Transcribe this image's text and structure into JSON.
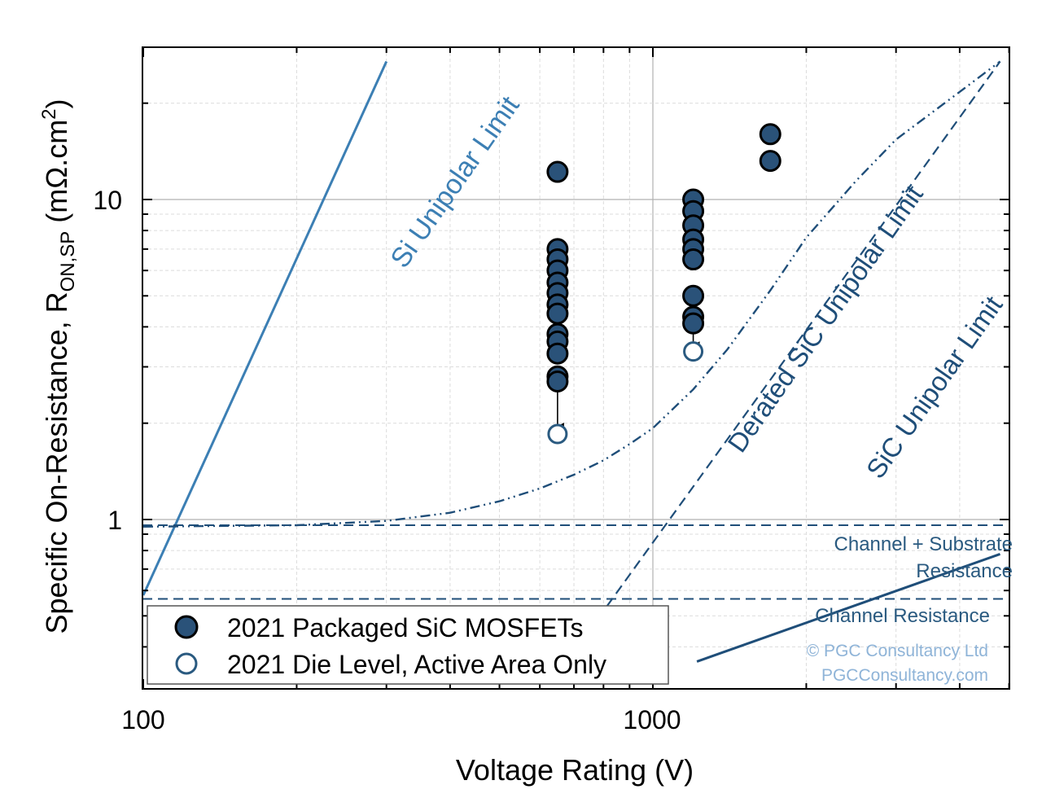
{
  "chart_data": {
    "type": "scatter",
    "xlabel": "Voltage Rating (V)",
    "ylabel_main": "Specific On-Resistance,  R",
    "ylabel_sub": "ON,SP",
    "ylabel_unit": " (mΩ.cm",
    "ylabel_sup": "2",
    "ylabel_close": ")",
    "x_scale": "log",
    "y_scale": "log",
    "xlim": [
      100,
      5000
    ],
    "ylim": [
      0.36,
      27
    ],
    "x_tick_labels": [
      {
        "value": 100,
        "label": "100"
      },
      {
        "value": 1000,
        "label": "1000"
      }
    ],
    "y_tick_labels": [
      {
        "value": 1,
        "label": "1"
      },
      {
        "value": 10,
        "label": "10"
      }
    ],
    "grid": true,
    "legend_position": "bottom-left",
    "series": [
      {
        "name": "2021 Packaged SiC MOSFETs",
        "marker": "filled-circle",
        "points": [
          [
            650,
            12.2
          ],
          [
            650,
            7.0
          ],
          [
            650,
            6.5
          ],
          [
            650,
            6.0
          ],
          [
            650,
            5.5
          ],
          [
            650,
            5.1
          ],
          [
            650,
            4.7
          ],
          [
            650,
            4.4
          ],
          [
            650,
            3.8
          ],
          [
            650,
            3.6
          ],
          [
            650,
            3.3
          ],
          [
            650,
            2.8
          ],
          [
            650,
            2.7
          ],
          [
            1200,
            10.0
          ],
          [
            1200,
            9.2
          ],
          [
            1200,
            8.3
          ],
          [
            1200,
            7.5
          ],
          [
            1200,
            7.0
          ],
          [
            1200,
            6.5
          ],
          [
            1200,
            5.0
          ],
          [
            1200,
            4.3
          ],
          [
            1200,
            4.1
          ],
          [
            1700,
            16.0
          ],
          [
            1700,
            13.2
          ]
        ]
      },
      {
        "name": "2021 Die Level, Active Area Only",
        "marker": "open-circle",
        "points": [
          [
            650,
            1.85
          ],
          [
            1200,
            3.35
          ]
        ]
      }
    ],
    "arrows": [
      {
        "x": 650,
        "y_from": 2.7,
        "y_to": 1.95
      },
      {
        "x": 1200,
        "y_from": 4.1,
        "y_to": 3.5
      }
    ],
    "lines": [
      {
        "label": "Si Unipolar Limit",
        "points": [
          [
            100,
            0.58
          ],
          [
            300,
            27
          ]
        ]
      },
      {
        "label": "SiC Unipolar Limit",
        "points": [
          [
            1220,
            0.36
          ],
          [
            4800,
            0.78
          ]
        ]
      },
      {
        "label": "Derated SiC Unipolar Limit",
        "points": [
          [
            780,
            0.49
          ],
          [
            4800,
            27
          ]
        ]
      },
      {
        "label": "",
        "points": [
          [
            100,
            0.95
          ],
          [
            200,
            0.96
          ],
          [
            300,
            0.99
          ],
          [
            400,
            1.05
          ],
          [
            500,
            1.14
          ],
          [
            600,
            1.25
          ],
          [
            700,
            1.38
          ],
          [
            800,
            1.53
          ],
          [
            900,
            1.72
          ],
          [
            1000,
            1.93
          ],
          [
            1200,
            2.55
          ],
          [
            1400,
            3.4
          ],
          [
            1700,
            5.2
          ],
          [
            2000,
            7.6
          ],
          [
            2500,
            11.4
          ],
          [
            3000,
            15.4
          ],
          [
            4000,
            21.7
          ],
          [
            4800,
            27
          ]
        ]
      }
    ],
    "reference_lines": [
      {
        "label": "Channel + Substrate",
        "label2": "Resistance",
        "y": 0.96
      },
      {
        "label": "Channel Resistance",
        "y": 0.565
      }
    ],
    "line_labels": {
      "si": "Si Unipolar Limit",
      "derated": "Derated SiC Unipolar Limit",
      "sic": "SiC Unipolar Limit",
      "channel_substrate_1": "Channel + Substrate",
      "channel_substrate_2": "Resistance",
      "channel": "Channel Resistance"
    },
    "watermark": [
      "© PGC Consultancy Ltd",
      "PGCConsultancy.com"
    ],
    "colors": {
      "si_line": "#3c7fb4",
      "sic_line": "#1f4e79",
      "marker_fill": "#2a5279",
      "marker_edge": "#000000",
      "open_marker": "#2a5a80",
      "watermark": "#8fb4d8"
    }
  }
}
